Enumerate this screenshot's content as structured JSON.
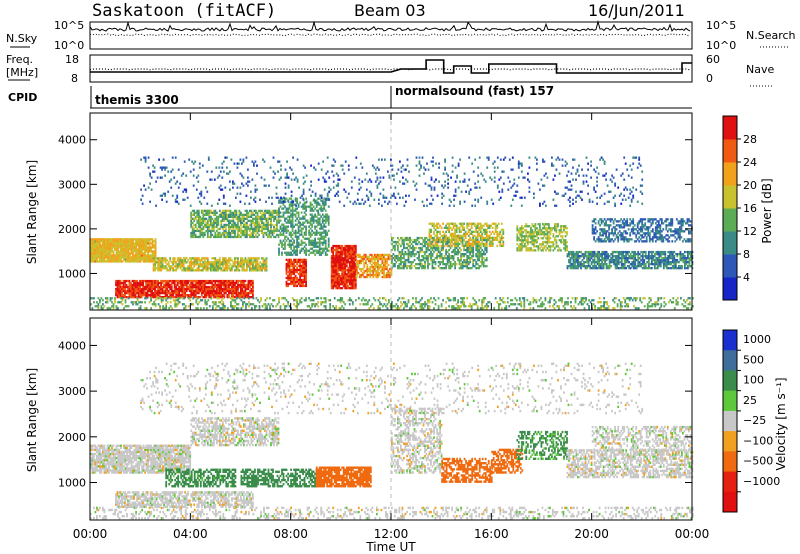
{
  "header": {
    "station": "Saskatoon (fitACF)",
    "beam": "Beam 03",
    "date": "16/Jun/2011"
  },
  "noise_panel": {
    "left_label": "N.Sky",
    "right_label": "N.Search",
    "left_ticks": [
      "10^5",
      "10^0"
    ],
    "right_ticks": [
      "10^5",
      "10^0"
    ]
  },
  "freq_panel": {
    "left_label_line1": "Freq.",
    "left_label_line2": "[MHz]",
    "right_label": "Nave",
    "left_ticks": [
      "18",
      "8"
    ],
    "right_ticks": [
      "60",
      "0"
    ]
  },
  "cpid": {
    "label": "CPID",
    "modes": [
      {
        "name": "themis 3300",
        "start_hour": 0
      },
      {
        "name": "normalsound (fast) 157",
        "start_hour": 12
      }
    ]
  },
  "chart_data": [
    {
      "type": "heatmap",
      "name": "power",
      "ylabel": "Slant Range [km]",
      "xlabel": "",
      "x_range_hours": [
        0,
        24
      ],
      "ylim": [
        180,
        4600
      ],
      "y_ticks": [
        1000,
        2000,
        3000,
        4000
      ],
      "colorbar": {
        "label": "Power [dB]",
        "ticks": [
          4,
          8,
          12,
          16,
          20,
          24,
          28
        ],
        "range": [
          0,
          32
        ],
        "colors": [
          "#1525c8",
          "#2e58b8",
          "#3a8a86",
          "#5cac56",
          "#c8c22e",
          "#f2a11a",
          "#f05a12",
          "#e01010"
        ]
      },
      "regions": [
        {
          "t0": 0.0,
          "t1": 2.6,
          "r0": 1250,
          "r1": 1750,
          "value": 20,
          "density": 0.95
        },
        {
          "t0": 1.0,
          "t1": 6.5,
          "r0": 450,
          "r1": 850,
          "value": 29,
          "density": 0.9
        },
        {
          "t0": 2.5,
          "t1": 7.0,
          "r0": 1050,
          "r1": 1350,
          "value": 18,
          "density": 0.8
        },
        {
          "t0": 4.0,
          "t1": 7.5,
          "r0": 1800,
          "r1": 2400,
          "value": 14,
          "density": 0.7
        },
        {
          "t0": 7.5,
          "t1": 9.5,
          "r0": 1400,
          "r1": 2700,
          "value": 12,
          "density": 0.55
        },
        {
          "t0": 7.8,
          "t1": 8.6,
          "r0": 700,
          "r1": 1300,
          "value": 28,
          "density": 0.85
        },
        {
          "t0": 9.6,
          "t1": 10.6,
          "r0": 650,
          "r1": 1600,
          "value": 29,
          "density": 0.95
        },
        {
          "t0": 10.6,
          "t1": 12.0,
          "r0": 900,
          "r1": 1400,
          "value": 22,
          "density": 0.75
        },
        {
          "t0": 12.0,
          "t1": 15.8,
          "r0": 1100,
          "r1": 1800,
          "value": 13,
          "density": 0.6
        },
        {
          "t0": 13.5,
          "t1": 16.5,
          "r0": 1600,
          "r1": 2100,
          "value": 18,
          "density": 0.55
        },
        {
          "t0": 17.0,
          "t1": 19.0,
          "r0": 1500,
          "r1": 2100,
          "value": 16,
          "density": 0.6
        },
        {
          "t0": 19.0,
          "t1": 24.0,
          "r0": 1100,
          "r1": 1500,
          "value": 10,
          "density": 0.75
        },
        {
          "t0": 20.0,
          "t1": 24.0,
          "r0": 1700,
          "r1": 2200,
          "value": 8,
          "density": 0.5
        },
        {
          "t0": 0.0,
          "t1": 24.0,
          "r0": 200,
          "r1": 450,
          "value": 14,
          "density": 0.35
        },
        {
          "t0": 2.0,
          "t1": 22.0,
          "r0": 2500,
          "r1": 3600,
          "value": 7,
          "density": 0.1
        }
      ]
    },
    {
      "type": "heatmap",
      "name": "velocity",
      "ylabel": "Slant Range [km]",
      "xlabel": "Time UT",
      "x_range_hours": [
        0,
        24
      ],
      "x_tick_labels": [
        "00:00",
        "04:00",
        "08:00",
        "12:00",
        "16:00",
        "20:00",
        "00:00"
      ],
      "ylim": [
        180,
        4600
      ],
      "y_ticks": [
        1000,
        2000,
        3000,
        4000
      ],
      "colorbar": {
        "label": "Velocity [m s⁻¹]",
        "ticks": [
          "1000",
          "500",
          "100",
          "25",
          "−25",
          "−100",
          "−500",
          "−1000"
        ],
        "colors": [
          "#1a2fd0",
          "#3f6e9a",
          "#3a8c4a",
          "#5cc83a",
          "#c8c8c8",
          "#f2a020",
          "#f06a10",
          "#e52010",
          "#e01010"
        ]
      },
      "regions": [
        {
          "t0": 0.0,
          "t1": 4.0,
          "r0": 1200,
          "r1": 1800,
          "value": 0,
          "density": 0.85
        },
        {
          "t0": 4.0,
          "t1": 7.5,
          "r0": 1800,
          "r1": 2400,
          "value": 0,
          "density": 0.6
        },
        {
          "t0": 1.0,
          "t1": 6.5,
          "r0": 450,
          "r1": 800,
          "value": 0,
          "density": 0.7
        },
        {
          "t0": 3.0,
          "t1": 5.8,
          "r0": 900,
          "r1": 1300,
          "value": 150,
          "density": 0.6
        },
        {
          "t0": 6.0,
          "t1": 9.0,
          "r0": 900,
          "r1": 1300,
          "value": 200,
          "density": 0.6
        },
        {
          "t0": 9.0,
          "t1": 11.2,
          "r0": 900,
          "r1": 1350,
          "value": -350,
          "density": 0.85
        },
        {
          "t0": 12.0,
          "t1": 14.0,
          "r0": 1200,
          "r1": 2600,
          "value": 0,
          "density": 0.45
        },
        {
          "t0": 14.0,
          "t1": 16.0,
          "r0": 1000,
          "r1": 1500,
          "value": -300,
          "density": 0.6
        },
        {
          "t0": 16.0,
          "t1": 17.2,
          "r0": 1200,
          "r1": 1700,
          "value": -300,
          "density": 0.6
        },
        {
          "t0": 17.0,
          "t1": 19.0,
          "r0": 1500,
          "r1": 2100,
          "value": 120,
          "density": 0.45
        },
        {
          "t0": 19.0,
          "t1": 24.0,
          "r0": 1100,
          "r1": 1700,
          "value": 0,
          "density": 0.6
        },
        {
          "t0": 20.0,
          "t1": 24.0,
          "r0": 1700,
          "r1": 2200,
          "value": 0,
          "density": 0.45
        },
        {
          "t0": 0.0,
          "t1": 24.0,
          "r0": 200,
          "r1": 450,
          "value": 0,
          "density": 0.3
        },
        {
          "t0": 2.0,
          "t1": 22.0,
          "r0": 2500,
          "r1": 3600,
          "value": 0,
          "density": 0.1
        }
      ]
    }
  ]
}
